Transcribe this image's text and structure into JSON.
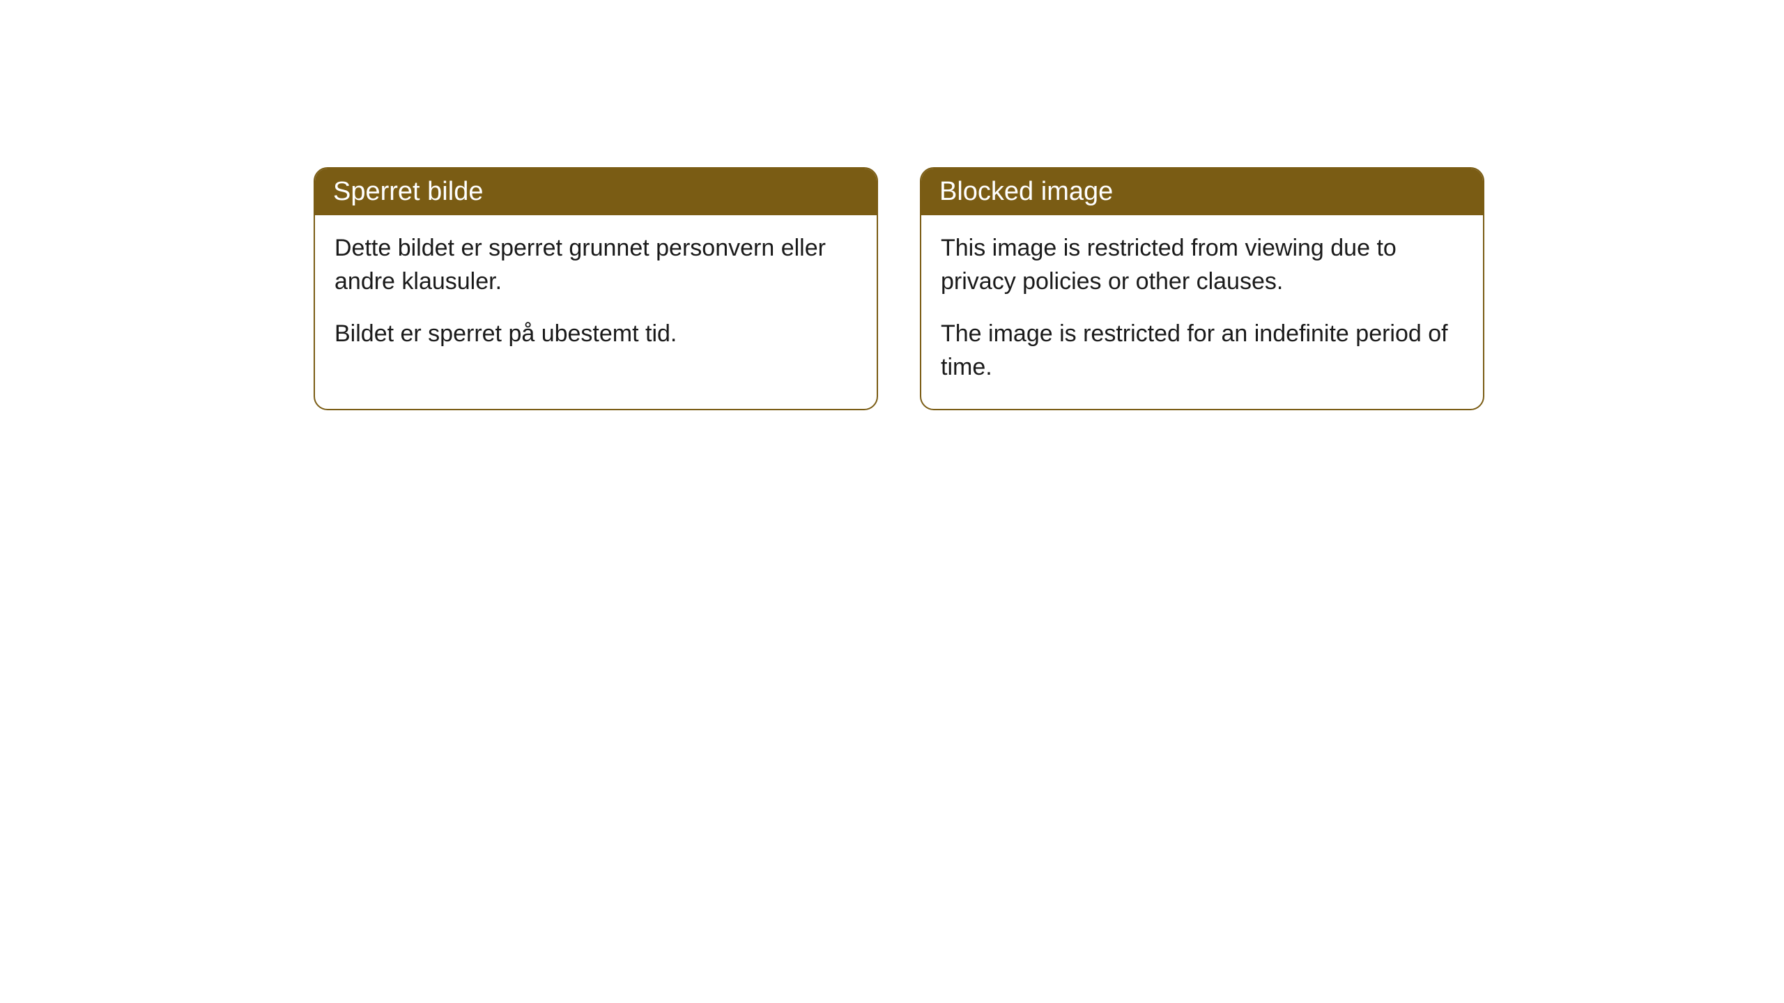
{
  "cards": [
    {
      "title": "Sperret bilde",
      "paragraph1": "Dette bildet er sperret grunnet personvern eller andre klausuler.",
      "paragraph2": "Bildet er sperret på ubestemt tid."
    },
    {
      "title": "Blocked image",
      "paragraph1": "This image is restricted from viewing due to privacy policies or other clauses.",
      "paragraph2": "The image is restricted for an indefinite period of time."
    }
  ],
  "styling": {
    "header_bg_color": "#7a5c14",
    "header_text_color": "#ffffff",
    "border_color": "#7a5c14",
    "body_bg_color": "#ffffff",
    "body_text_color": "#1a1a1a",
    "border_radius": 20,
    "header_fontsize": 38,
    "body_fontsize": 34
  }
}
